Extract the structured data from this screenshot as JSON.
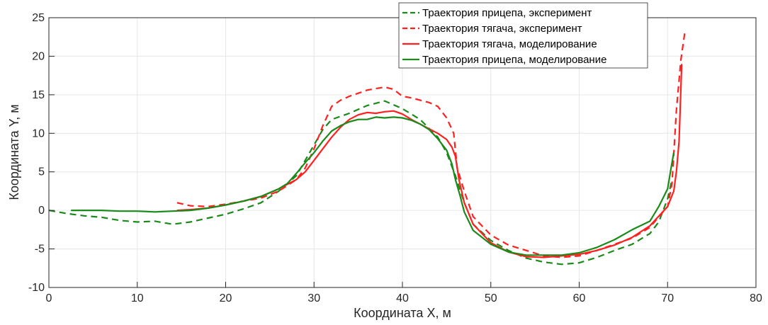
{
  "chart_data": {
    "type": "line",
    "xlabel": "Координата X, м",
    "ylabel": "Координата Y, м",
    "xlim": [
      0,
      80
    ],
    "ylim": [
      -10,
      25
    ],
    "xticks": [
      0,
      10,
      20,
      30,
      40,
      50,
      60,
      70,
      80
    ],
    "yticks": [
      -10,
      -5,
      0,
      5,
      10,
      15,
      20,
      25
    ],
    "grid": true,
    "legend_position": "top-right",
    "colors": {
      "green": "#1a8a1a",
      "red": "#ff2020",
      "grid": "#e6e6e6",
      "axis": "#262626"
    },
    "series": [
      {
        "name": "Траектория прицепа, эксперимент",
        "color": "#1a8a1a",
        "style": "dashed",
        "x": [
          0,
          2,
          4,
          6,
          8,
          10,
          12,
          14,
          16,
          18,
          20,
          22,
          24,
          26,
          28,
          29,
          30,
          31,
          32,
          34,
          36,
          38,
          40,
          42,
          44,
          45,
          46,
          47,
          48,
          50,
          52,
          54,
          56,
          58,
          60,
          62,
          64,
          66,
          68,
          69,
          70,
          70.5
        ],
        "y": [
          0,
          -0.4,
          -0.7,
          -0.9,
          -1.3,
          -1.5,
          -1.4,
          -1.8,
          -1.5,
          -1.0,
          -0.5,
          0.2,
          1.0,
          2.5,
          4.5,
          6.5,
          8.5,
          10.5,
          11.8,
          12.6,
          13.6,
          14.2,
          13.2,
          11.8,
          9.5,
          7.5,
          4.5,
          1.0,
          -1.8,
          -3.9,
          -5.2,
          -6.2,
          -6.7,
          -7.0,
          -6.8,
          -6.1,
          -5.2,
          -4.4,
          -3.0,
          -1.5,
          1.5,
          4.0
        ]
      },
      {
        "name": "Траектория тягача, эксперимент",
        "color": "#ff2020",
        "style": "dashed",
        "x": [
          14.5,
          16,
          18,
          20,
          22,
          24,
          26,
          28,
          29,
          30,
          31,
          32,
          33,
          34,
          35,
          36,
          37,
          38,
          39,
          40,
          41,
          42,
          43,
          44,
          45,
          45.8,
          46.2,
          47,
          48,
          50,
          52,
          54,
          56,
          58,
          60,
          62,
          64,
          66,
          68,
          70,
          70.5,
          71,
          71.5,
          72
        ],
        "y": [
          1.0,
          0.6,
          0.5,
          0.8,
          1.2,
          1.6,
          2.5,
          4.0,
          5.5,
          8.0,
          11.0,
          13.5,
          14.3,
          14.8,
          15.2,
          15.6,
          15.8,
          16.0,
          15.7,
          14.8,
          14.6,
          14.3,
          14.0,
          13.5,
          12.0,
          10.0,
          5.5,
          2.5,
          -0.8,
          -3.2,
          -4.5,
          -5.2,
          -5.9,
          -6.1,
          -5.9,
          -5.2,
          -4.4,
          -3.6,
          -2.2,
          0.5,
          3.5,
          13.0,
          19.5,
          23.5
        ]
      },
      {
        "name": "Траектория тягача, моделирование",
        "color": "#ff2020",
        "style": "solid",
        "x": [
          14.5,
          16,
          18,
          20,
          22,
          24,
          26,
          28,
          29,
          30,
          31,
          32,
          33,
          34,
          35,
          36,
          37,
          38,
          39,
          40,
          41,
          42,
          43,
          44,
          45,
          45.6,
          46,
          46.4,
          47,
          48,
          50,
          52,
          54,
          56,
          58,
          60,
          62,
          64,
          66,
          68,
          70,
          70.7,
          71,
          71.3,
          71.6
        ],
        "y": [
          0,
          0.1,
          0.3,
          0.7,
          1.2,
          1.8,
          2.8,
          4.0,
          5.0,
          6.5,
          8.0,
          9.5,
          10.8,
          11.8,
          12.4,
          12.7,
          12.6,
          12.8,
          12.9,
          12.5,
          11.8,
          11.2,
          10.6,
          10.0,
          9.2,
          8.2,
          7.0,
          4.0,
          1.0,
          -1.8,
          -4.2,
          -5.4,
          -6.0,
          -6.1,
          -5.9,
          -5.7,
          -5.2,
          -4.5,
          -3.5,
          -2.0,
          0.5,
          2.5,
          5.0,
          9.0,
          19.0
        ]
      },
      {
        "name": "Траектория прицепа, моделирование",
        "color": "#1a8a1a",
        "style": "solid",
        "x": [
          2.5,
          4,
          6,
          8,
          10,
          12,
          14,
          16,
          18,
          20,
          22,
          24,
          26,
          27,
          28,
          29,
          30,
          31,
          32,
          33,
          34,
          35,
          36,
          37,
          38,
          39,
          40,
          41,
          42,
          43,
          44,
          45,
          45.6,
          46,
          46.5,
          47,
          48,
          50,
          52,
          54,
          56,
          58,
          60,
          62,
          64,
          66,
          68,
          69,
          70,
          70.4,
          70.7
        ],
        "y": [
          0,
          0,
          0,
          -0.1,
          -0.1,
          -0.2,
          -0.1,
          0,
          0.3,
          0.7,
          1.2,
          1.8,
          2.8,
          3.5,
          4.8,
          6.2,
          7.5,
          9.0,
          10.3,
          11.0,
          11.5,
          11.8,
          11.8,
          12.1,
          12.0,
          12.1,
          12.0,
          11.7,
          11.2,
          10.5,
          9.3,
          7.8,
          6.0,
          4.0,
          2.0,
          -0.2,
          -2.6,
          -4.4,
          -5.4,
          -5.8,
          -5.8,
          -5.8,
          -5.5,
          -4.8,
          -3.8,
          -2.5,
          -1.4,
          0.5,
          2.8,
          5.5,
          7.5
        ]
      }
    ]
  }
}
